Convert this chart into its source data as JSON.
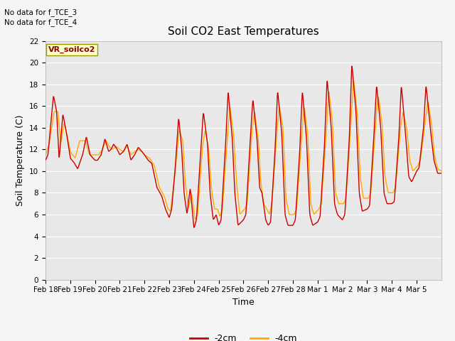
{
  "title": "Soil CO2 East Temperatures",
  "xlabel": "Time",
  "ylabel": "Soil Temperature (C)",
  "ylim": [
    0,
    22
  ],
  "yticks": [
    0,
    2,
    4,
    6,
    8,
    10,
    12,
    14,
    16,
    18,
    20,
    22
  ],
  "xtick_labels": [
    "Feb 18",
    "Feb 19",
    "Feb 20",
    "Feb 21",
    "Feb 22",
    "Feb 23",
    "Feb 24",
    "Feb 25",
    "Feb 26",
    "Feb 27",
    "Feb 28",
    "Mar 1",
    "Mar 2",
    "Mar 3",
    "Mar 4",
    "Mar 5"
  ],
  "color_2cm": "#cc0000",
  "color_4cm": "#ffaa00",
  "legend_label_2cm": "-2cm",
  "legend_label_4cm": "-4cm",
  "annotations": [
    "No data for f_TCE_3",
    "No data for f_TCE_4"
  ],
  "box_label": "VR_soilco2",
  "background_color": "#e8e8e8",
  "grid_color": "#ffffff",
  "title_fontsize": 11,
  "axis_fontsize": 9,
  "tick_fontsize": 7.5
}
